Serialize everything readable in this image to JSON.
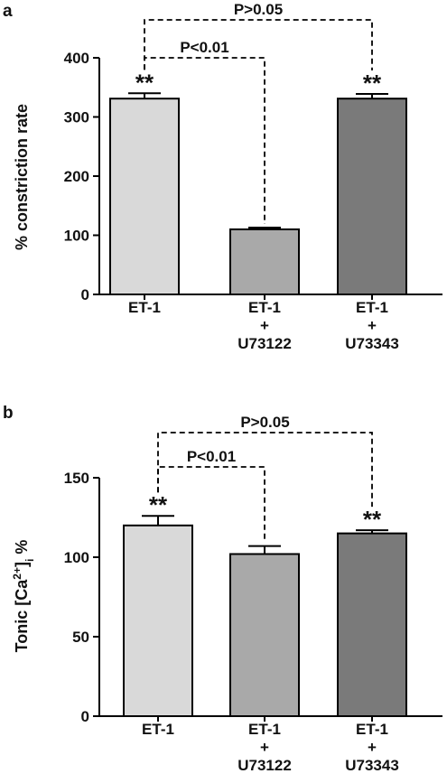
{
  "chart_data": [
    {
      "panel_label": "a",
      "type": "bar",
      "categories": [
        [
          "ET-1"
        ],
        [
          "ET-1",
          "+",
          "U73122"
        ],
        [
          "ET-1",
          "+",
          "U73343"
        ]
      ],
      "values": [
        331,
        110,
        331
      ],
      "errors": [
        9,
        3,
        8
      ],
      "bar_colors": [
        "#d9d9d9",
        "#a9a9a9",
        "#7a7a7a"
      ],
      "significance": [
        "**",
        "",
        "**"
      ],
      "ylabel": "% constriction rate",
      "ylim": [
        0,
        400
      ],
      "yticks": [
        0,
        100,
        200,
        300,
        400
      ],
      "comparisons": [
        {
          "from": 0,
          "to": 1,
          "label": "P<0.01"
        },
        {
          "from": 0,
          "to": 2,
          "label": "P>0.05"
        }
      ]
    },
    {
      "panel_label": "b",
      "type": "bar",
      "categories": [
        [
          "ET-1"
        ],
        [
          "ET-1",
          "+",
          "U73122"
        ],
        [
          "ET-1",
          "+",
          "U73343"
        ]
      ],
      "values": [
        120,
        102,
        115
      ],
      "errors": [
        6,
        5,
        2
      ],
      "bar_colors": [
        "#d9d9d9",
        "#a9a9a9",
        "#7a7a7a"
      ],
      "significance": [
        "**",
        "",
        "**"
      ],
      "ylabel": {
        "main": "Tonic [Ca",
        "sup": "2+",
        "close": "]",
        "sub": "i",
        "unit": " %"
      },
      "ylim": [
        0,
        150
      ],
      "yticks": [
        0,
        50,
        100,
        150
      ],
      "comparisons": [
        {
          "from": 0,
          "to": 1,
          "label": "P<0.01"
        },
        {
          "from": 0,
          "to": 2,
          "label": "P>0.05"
        }
      ]
    }
  ]
}
